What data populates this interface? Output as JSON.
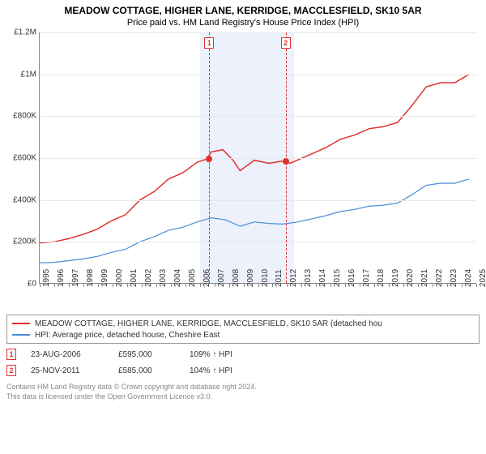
{
  "title": "MEADOW COTTAGE, HIGHER LANE, KERRIDGE, MACCLESFIELD, SK10 5AR",
  "subtitle": "Price paid vs. HM Land Registry's House Price Index (HPI)",
  "chart": {
    "type": "line",
    "background_color": "#ffffff",
    "grid_color": "#e8e8e8",
    "axis_color": "#888888",
    "tick_fontsize": 10,
    "x_years": [
      1995,
      1996,
      1997,
      1998,
      1999,
      2000,
      2001,
      2002,
      2003,
      2004,
      2005,
      2006,
      2007,
      2008,
      2009,
      2010,
      2011,
      2012,
      2013,
      2014,
      2015,
      2016,
      2017,
      2018,
      2019,
      2020,
      2021,
      2022,
      2023,
      2024,
      2025
    ],
    "y_ticks": [
      0,
      200000,
      400000,
      600000,
      800000,
      1000000,
      1200000
    ],
    "y_tick_labels": [
      "£0",
      "£200K",
      "£400K",
      "£600K",
      "£800K",
      "£1M",
      "£1.2M"
    ],
    "ylim": [
      0,
      1200000
    ],
    "xlim": [
      1995,
      2025.5
    ],
    "shaded_bands": [
      {
        "from": 2006.0,
        "to": 2007.0,
        "color": "rgba(200,215,245,0.35)"
      },
      {
        "from": 2007.0,
        "to": 2012.5,
        "color": "rgba(200,215,245,0.35)"
      }
    ],
    "sale_markers": [
      {
        "label": "1",
        "year": 2006.65,
        "price": 595000,
        "line_color": "#e03030",
        "box_border": "#e03030",
        "box_text_color": "#e03030"
      },
      {
        "label": "2",
        "year": 2011.9,
        "price": 585000,
        "line_color": "#e03030",
        "box_border": "#e03030",
        "box_text_color": "#e03030"
      }
    ],
    "series": [
      {
        "name": "property",
        "label": "MEADOW COTTAGE, HIGHER LANE, KERRIDGE, MACCLESFIELD, SK10 5AR (detached hou",
        "color": "#e03030",
        "line_width": 1.5,
        "points": [
          [
            1995,
            195000
          ],
          [
            1996,
            200000
          ],
          [
            1997,
            215000
          ],
          [
            1998,
            235000
          ],
          [
            1999,
            260000
          ],
          [
            2000,
            300000
          ],
          [
            2001,
            330000
          ],
          [
            2002,
            400000
          ],
          [
            2003,
            440000
          ],
          [
            2004,
            500000
          ],
          [
            2005,
            530000
          ],
          [
            2006,
            580000
          ],
          [
            2006.65,
            595000
          ],
          [
            2007,
            630000
          ],
          [
            2007.8,
            640000
          ],
          [
            2008.5,
            590000
          ],
          [
            2009,
            540000
          ],
          [
            2010,
            590000
          ],
          [
            2011,
            575000
          ],
          [
            2011.9,
            585000
          ],
          [
            2012.5,
            575000
          ],
          [
            2013,
            590000
          ],
          [
            2014,
            620000
          ],
          [
            2015,
            650000
          ],
          [
            2016,
            690000
          ],
          [
            2017,
            710000
          ],
          [
            2018,
            740000
          ],
          [
            2019,
            750000
          ],
          [
            2020,
            770000
          ],
          [
            2021,
            850000
          ],
          [
            2022,
            940000
          ],
          [
            2023,
            960000
          ],
          [
            2024,
            960000
          ],
          [
            2025,
            1000000
          ]
        ]
      },
      {
        "name": "hpi",
        "label": "HPI: Average price, detached house, Cheshire East",
        "color": "#4a8bd6",
        "line_width": 1.2,
        "points": [
          [
            1995,
            100000
          ],
          [
            1996,
            102000
          ],
          [
            1997,
            110000
          ],
          [
            1998,
            118000
          ],
          [
            1999,
            130000
          ],
          [
            2000,
            150000
          ],
          [
            2001,
            165000
          ],
          [
            2002,
            200000
          ],
          [
            2003,
            225000
          ],
          [
            2004,
            255000
          ],
          [
            2005,
            270000
          ],
          [
            2006,
            295000
          ],
          [
            2007,
            315000
          ],
          [
            2008,
            305000
          ],
          [
            2009,
            275000
          ],
          [
            2010,
            295000
          ],
          [
            2011,
            288000
          ],
          [
            2012,
            285000
          ],
          [
            2013,
            295000
          ],
          [
            2014,
            310000
          ],
          [
            2015,
            325000
          ],
          [
            2016,
            345000
          ],
          [
            2017,
            355000
          ],
          [
            2018,
            370000
          ],
          [
            2019,
            375000
          ],
          [
            2020,
            385000
          ],
          [
            2021,
            425000
          ],
          [
            2022,
            470000
          ],
          [
            2023,
            480000
          ],
          [
            2024,
            480000
          ],
          [
            2025,
            500000
          ]
        ]
      }
    ],
    "marker_dot_color": "#e03030",
    "marker_dot_size": 8
  },
  "legend": {
    "border_color": "#999999",
    "fontsize": 10
  },
  "sales_table": [
    {
      "marker": "1",
      "marker_color": "#e03030",
      "date": "23-AUG-2006",
      "price": "£595,000",
      "hpi_diff": "109% ↑ HPI"
    },
    {
      "marker": "2",
      "marker_color": "#e03030",
      "date": "25-NOV-2011",
      "price": "£585,000",
      "hpi_diff": "104% ↑ HPI"
    }
  ],
  "footnote_line1": "Contains HM Land Registry data © Crown copyright and database right 2024.",
  "footnote_line2": "This data is licensed under the Open Government Licence v3.0."
}
